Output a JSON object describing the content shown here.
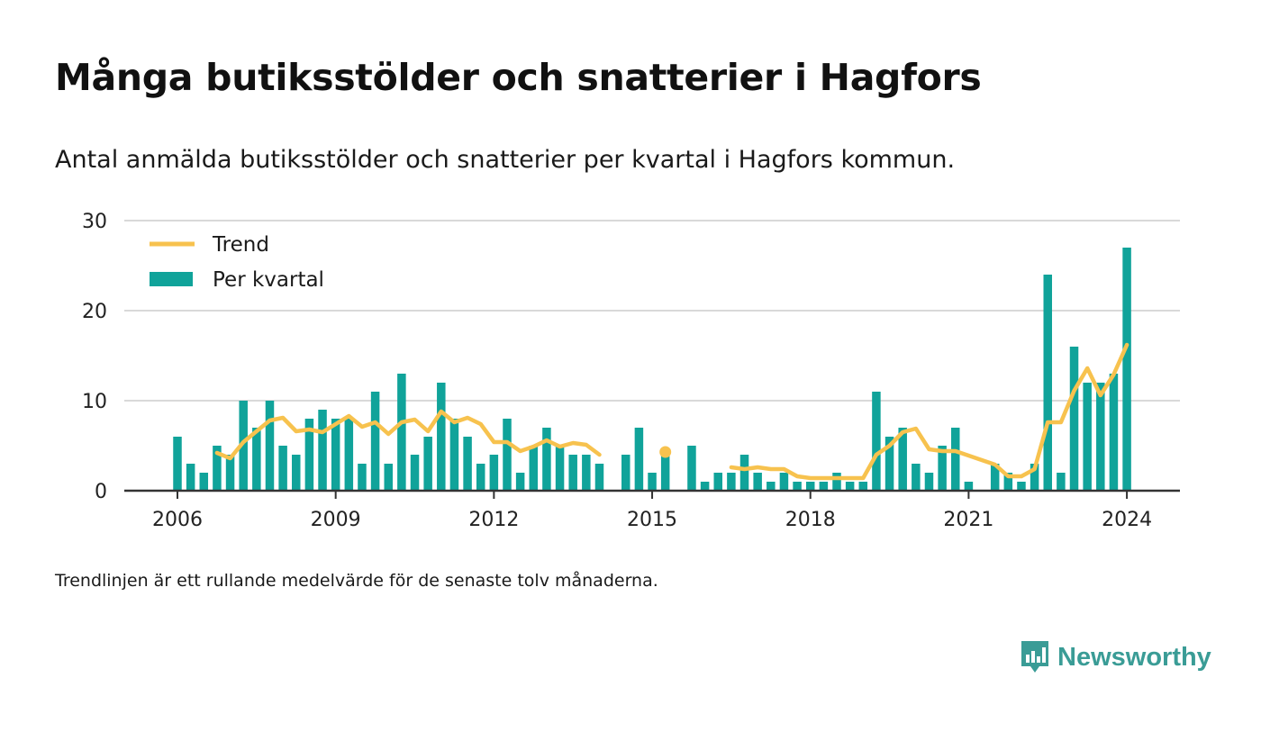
{
  "title": "Många butiksstölder och snatterier i Hagfors",
  "subtitle": "Antal anmälda butiksstölder och snatterier per kvartal i Hagfors kommun.",
  "footnote": "Trendlinjen är ett rullande medelvärde för de senaste tolv månaderna.",
  "brand": "Newsworthy",
  "colors": {
    "bar": "#10a39a",
    "trend": "#f7c24e",
    "grid": "#d9d9d9",
    "axis": "#333333",
    "brand": "#3a9c96"
  },
  "chart_data": {
    "type": "bar",
    "x_unit": "quarter",
    "x_ticks": [
      "2006",
      "2009",
      "2012",
      "2015",
      "2018",
      "2021",
      "2024"
    ],
    "y_ticks": [
      0,
      10,
      20,
      30
    ],
    "ylim": [
      0,
      30
    ],
    "grid": true,
    "legend_position": "top-left",
    "series": [
      {
        "name": "Per kvartal",
        "type": "bar",
        "points": [
          [
            "2006-Q1",
            6
          ],
          [
            "2006-Q2",
            3
          ],
          [
            "2006-Q3",
            2
          ],
          [
            "2006-Q4",
            5
          ],
          [
            "2007-Q1",
            4
          ],
          [
            "2007-Q2",
            10
          ],
          [
            "2007-Q3",
            7
          ],
          [
            "2007-Q4",
            10
          ],
          [
            "2008-Q1",
            5
          ],
          [
            "2008-Q2",
            4
          ],
          [
            "2008-Q3",
            8
          ],
          [
            "2008-Q4",
            9
          ],
          [
            "2009-Q1",
            8
          ],
          [
            "2009-Q2",
            8
          ],
          [
            "2009-Q3",
            3
          ],
          [
            "2009-Q4",
            11
          ],
          [
            "2010-Q1",
            3
          ],
          [
            "2010-Q2",
            13
          ],
          [
            "2010-Q3",
            4
          ],
          [
            "2010-Q4",
            6
          ],
          [
            "2011-Q1",
            12
          ],
          [
            "2011-Q2",
            8
          ],
          [
            "2011-Q3",
            6
          ],
          [
            "2011-Q4",
            3
          ],
          [
            "2012-Q1",
            4
          ],
          [
            "2012-Q2",
            8
          ],
          [
            "2012-Q3",
            2
          ],
          [
            "2012-Q4",
            5
          ],
          [
            "2013-Q1",
            7
          ],
          [
            "2013-Q2",
            5
          ],
          [
            "2013-Q3",
            4
          ],
          [
            "2013-Q4",
            4
          ],
          [
            "2014-Q1",
            3
          ],
          [
            "2014-Q2",
            null
          ],
          [
            "2014-Q3",
            4
          ],
          [
            "2014-Q4",
            7
          ],
          [
            "2015-Q1",
            2
          ],
          [
            "2015-Q2",
            4
          ],
          [
            "2015-Q3",
            null
          ],
          [
            "2015-Q4",
            5
          ],
          [
            "2016-Q1",
            1
          ],
          [
            "2016-Q2",
            2
          ],
          [
            "2016-Q3",
            2
          ],
          [
            "2016-Q4",
            4
          ],
          [
            "2017-Q1",
            2
          ],
          [
            "2017-Q2",
            1
          ],
          [
            "2017-Q3",
            2
          ],
          [
            "2017-Q4",
            1
          ],
          [
            "2018-Q1",
            1
          ],
          [
            "2018-Q2",
            1
          ],
          [
            "2018-Q3",
            2
          ],
          [
            "2018-Q4",
            1
          ],
          [
            "2019-Q1",
            1
          ],
          [
            "2019-Q2",
            11
          ],
          [
            "2019-Q3",
            6
          ],
          [
            "2019-Q4",
            7
          ],
          [
            "2020-Q1",
            3
          ],
          [
            "2020-Q2",
            2
          ],
          [
            "2020-Q3",
            5
          ],
          [
            "2020-Q4",
            7
          ],
          [
            "2021-Q1",
            1
          ],
          [
            "2021-Q2",
            null
          ],
          [
            "2021-Q3",
            3
          ],
          [
            "2021-Q4",
            2
          ],
          [
            "2022-Q1",
            1
          ],
          [
            "2022-Q2",
            3
          ],
          [
            "2022-Q3",
            24
          ],
          [
            "2022-Q4",
            2
          ],
          [
            "2023-Q1",
            16
          ],
          [
            "2023-Q2",
            12
          ],
          [
            "2023-Q3",
            12
          ],
          [
            "2023-Q4",
            13
          ],
          [
            "2024-Q1",
            27
          ]
        ]
      },
      {
        "name": "Trend",
        "type": "line",
        "points": [
          [
            "2006-Q4",
            4.2
          ],
          [
            "2007-Q1",
            3.6
          ],
          [
            "2007-Q2",
            5.4
          ],
          [
            "2007-Q3",
            6.6
          ],
          [
            "2007-Q4",
            7.8
          ],
          [
            "2008-Q1",
            8.1
          ],
          [
            "2008-Q2",
            6.6
          ],
          [
            "2008-Q3",
            6.8
          ],
          [
            "2008-Q4",
            6.5
          ],
          [
            "2009-Q1",
            7.4
          ],
          [
            "2009-Q2",
            8.3
          ],
          [
            "2009-Q3",
            7.1
          ],
          [
            "2009-Q4",
            7.6
          ],
          [
            "2010-Q1",
            6.3
          ],
          [
            "2010-Q2",
            7.6
          ],
          [
            "2010-Q3",
            7.9
          ],
          [
            "2010-Q4",
            6.6
          ],
          [
            "2011-Q1",
            8.8
          ],
          [
            "2011-Q2",
            7.6
          ],
          [
            "2011-Q3",
            8.1
          ],
          [
            "2011-Q4",
            7.4
          ],
          [
            "2012-Q1",
            5.4
          ],
          [
            "2012-Q2",
            5.4
          ],
          [
            "2012-Q3",
            4.4
          ],
          [
            "2012-Q4",
            4.9
          ],
          [
            "2013-Q1",
            5.6
          ],
          [
            "2013-Q2",
            4.9
          ],
          [
            "2013-Q3",
            5.3
          ],
          [
            "2013-Q4",
            5.1
          ],
          [
            "2014-Q1",
            4.0
          ],
          [
            "2014-Q2",
            null
          ],
          [
            "2014-Q3",
            null
          ],
          [
            "2014-Q4",
            null
          ],
          [
            "2015-Q1",
            null
          ],
          [
            "2015-Q2",
            4.3
          ],
          [
            "2015-Q3",
            null
          ],
          [
            "2015-Q4",
            null
          ],
          [
            "2016-Q1",
            null
          ],
          [
            "2016-Q2",
            null
          ],
          [
            "2016-Q3",
            2.6
          ],
          [
            "2016-Q4",
            2.4
          ],
          [
            "2017-Q1",
            2.6
          ],
          [
            "2017-Q2",
            2.4
          ],
          [
            "2017-Q3",
            2.4
          ],
          [
            "2017-Q4",
            1.6
          ],
          [
            "2018-Q1",
            1.4
          ],
          [
            "2018-Q2",
            1.4
          ],
          [
            "2018-Q3",
            1.4
          ],
          [
            "2018-Q4",
            1.4
          ],
          [
            "2019-Q1",
            1.4
          ],
          [
            "2019-Q2",
            4.0
          ],
          [
            "2019-Q3",
            5.0
          ],
          [
            "2019-Q4",
            6.5
          ],
          [
            "2020-Q1",
            6.9
          ],
          [
            "2020-Q2",
            4.6
          ],
          [
            "2020-Q3",
            4.4
          ],
          [
            "2020-Q4",
            4.4
          ],
          [
            "2021-Q1",
            3.9
          ],
          [
            "2021-Q2",
            3.4
          ],
          [
            "2021-Q3",
            2.9
          ],
          [
            "2021-Q4",
            1.6
          ],
          [
            "2022-Q1",
            1.6
          ],
          [
            "2022-Q2",
            2.4
          ],
          [
            "2022-Q3",
            7.6
          ],
          [
            "2022-Q4",
            7.6
          ],
          [
            "2023-Q1",
            11.1
          ],
          [
            "2023-Q2",
            13.6
          ],
          [
            "2023-Q3",
            10.6
          ],
          [
            "2023-Q4",
            12.9
          ],
          [
            "2024-Q1",
            16.2
          ]
        ]
      }
    ]
  }
}
